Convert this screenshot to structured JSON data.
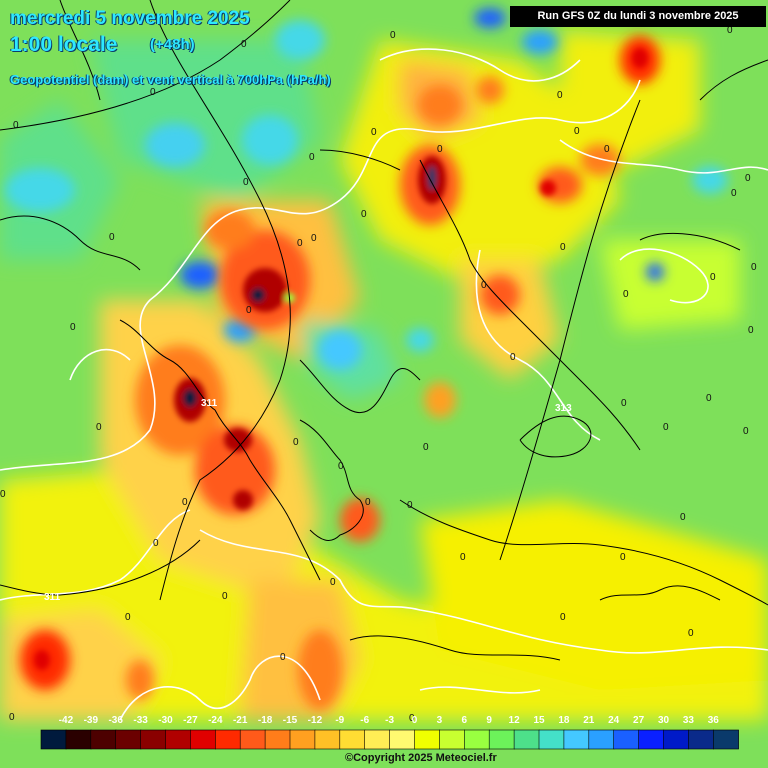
{
  "header": {
    "date": "mercredi 5 novembre 2025",
    "time": "1:00 locale",
    "lead": "(+48h)",
    "parameter": "Geopotentiel (dam) et vent vertical à 700hPa (hPa/h)"
  },
  "run": "Run GFS 0Z du lundi 3 novembre 2025",
  "copyright": "©Copyright 2025 Meteociel.fr",
  "legend": {
    "ticks": [
      "-42",
      "-39",
      "-36",
      "-33",
      "-30",
      "-27",
      "-24",
      "-21",
      "-18",
      "-15",
      "-12",
      "-9",
      "-6",
      "-3",
      "0",
      "3",
      "6",
      "9",
      "12",
      "15",
      "18",
      "21",
      "24",
      "27",
      "30",
      "33",
      "36"
    ],
    "colors": [
      "#001a3d",
      "#2a0000",
      "#4d0000",
      "#6b0000",
      "#8a0000",
      "#b00000",
      "#e00000",
      "#ff2a00",
      "#ff5a1a",
      "#ff7d1a",
      "#ffa020",
      "#ffc026",
      "#ffdd33",
      "#ffee55",
      "#fffa70",
      "#f0ff00",
      "#c8ff30",
      "#99ff40",
      "#6cf25a",
      "#4de08a",
      "#44e0c8",
      "#44c8ff",
      "#2aa0ff",
      "#1a60ff",
      "#0a20ff",
      "#001ac8",
      "#0a2a8a",
      "#0a3a6b"
    ]
  },
  "map": {
    "isolines": [
      "311",
      "313",
      "311"
    ],
    "zero_labels": [
      "0",
      "0",
      "0",
      "0",
      "0",
      "0",
      "0",
      "0",
      "0",
      "0",
      "0",
      "0",
      "0",
      "0",
      "0",
      "0",
      "0",
      "0",
      "0",
      "0",
      "0",
      "0",
      "0",
      "0",
      "0",
      "0",
      "0",
      "0",
      "0",
      "0",
      "0",
      "0",
      "0",
      "0",
      "0",
      "0",
      "0",
      "0",
      "0",
      "0",
      "0",
      "0",
      "0",
      "0",
      "0",
      "0",
      "0",
      "0",
      "0",
      "0",
      "0"
    ]
  },
  "colors": {
    "title": "#2ee8ff",
    "run_box_bg": "#000000",
    "base_field": "#7ee05a"
  }
}
